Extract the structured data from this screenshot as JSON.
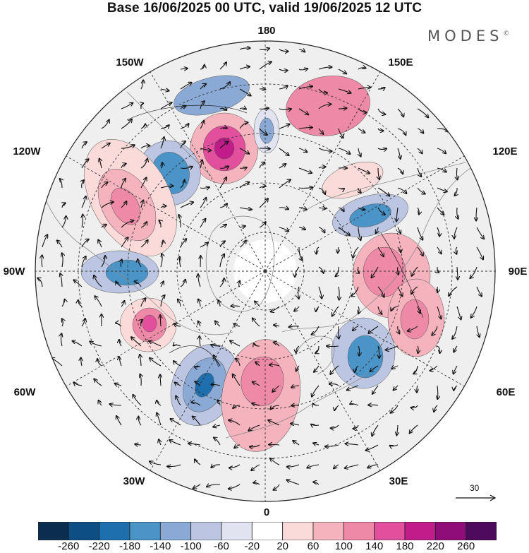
{
  "title": "Base 16/06/2025 00 UTC, valid 19/06/2025 12 UTC",
  "brand": "MODES",
  "brand_mark": "©",
  "longitude_labels": {
    "top": "180",
    "upper_left": "150W",
    "upper_right": "150E",
    "mid_upper_left": "120W",
    "mid_upper_right": "120E",
    "left": "90W",
    "right": "90E",
    "mid_lower_left": "60W",
    "mid_lower_right": "60E",
    "lower_left": "30W",
    "lower_right": "30E",
    "bottom": "0"
  },
  "reference_vector_label": "30",
  "colorbar": {
    "colors": [
      "#0b2e4e",
      "#0d4f85",
      "#1e6fae",
      "#4a94c8",
      "#8aa9d4",
      "#bcc6e2",
      "#e1e3f0",
      "#ffffff",
      "#fbdada",
      "#f5b3bd",
      "#ee8aa8",
      "#e24f9c",
      "#c21c8a",
      "#8f0d78",
      "#4e0a5c"
    ],
    "labels": [
      "-260",
      "-220",
      "-180",
      "-140",
      "-100",
      "-60",
      "-20",
      "20",
      "60",
      "100",
      "140",
      "180",
      "220",
      "260"
    ]
  },
  "anomaly_features": [
    {
      "id": "pos-west-pacific",
      "level": 140
    },
    {
      "id": "pos-kamchatka",
      "level": 220
    },
    {
      "id": "neg-bering",
      "level": -100
    },
    {
      "id": "neg-alaska",
      "level": -140
    },
    {
      "id": "neg-aleutian",
      "level": -100
    },
    {
      "id": "pos-canada-west",
      "level": 140
    },
    {
      "id": "neg-hudson",
      "level": -140
    },
    {
      "id": "pos-labrador",
      "level": 180
    },
    {
      "id": "neg-greenland-sea",
      "level": -180
    },
    {
      "id": "pos-north-sea",
      "level": 140
    },
    {
      "id": "neg-ural",
      "level": -140
    },
    {
      "id": "pos-siberia",
      "level": 140
    },
    {
      "id": "pos-central-asia",
      "level": 140
    },
    {
      "id": "neg-east-siberia",
      "level": -140
    },
    {
      "id": "pos-north-pacific",
      "level": 60
    }
  ]
}
